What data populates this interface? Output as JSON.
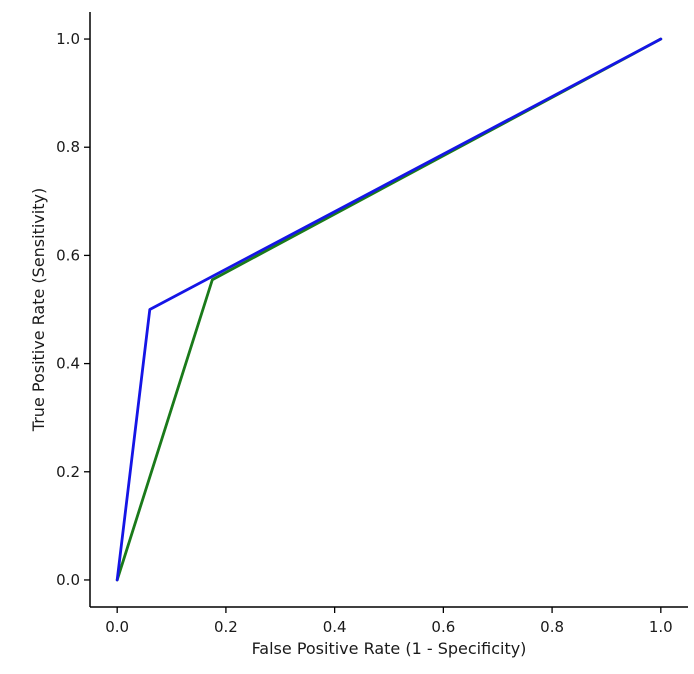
{
  "chart_data": {
    "type": "line",
    "title": "",
    "xlabel": "False Positive Rate (1 - Specificity)",
    "ylabel": "True Positive Rate (Sensitivity)",
    "xlim": [
      -0.05,
      1.05
    ],
    "ylim": [
      -0.05,
      1.05
    ],
    "xticks": [
      0.0,
      0.2,
      0.4,
      0.6,
      0.8,
      1.0
    ],
    "yticks": [
      0.0,
      0.2,
      0.4,
      0.6,
      0.8,
      1.0
    ],
    "xtick_labels": [
      "0.0",
      "0.2",
      "0.4",
      "0.6",
      "0.8",
      "1.0"
    ],
    "ytick_labels": [
      "0.0",
      "0.2",
      "0.4",
      "0.6",
      "0.8",
      "1.0"
    ],
    "grid": false,
    "legend": "none",
    "spines": [
      "left",
      "bottom"
    ],
    "series": [
      {
        "color": "#1a7a1a",
        "x": [
          0.0,
          0.175,
          1.0
        ],
        "y": [
          0.0,
          0.555,
          1.0
        ]
      },
      {
        "color": "#1515e6",
        "x": [
          0.0,
          0.06,
          1.0
        ],
        "y": [
          0.0,
          0.5,
          1.0
        ]
      }
    ]
  }
}
